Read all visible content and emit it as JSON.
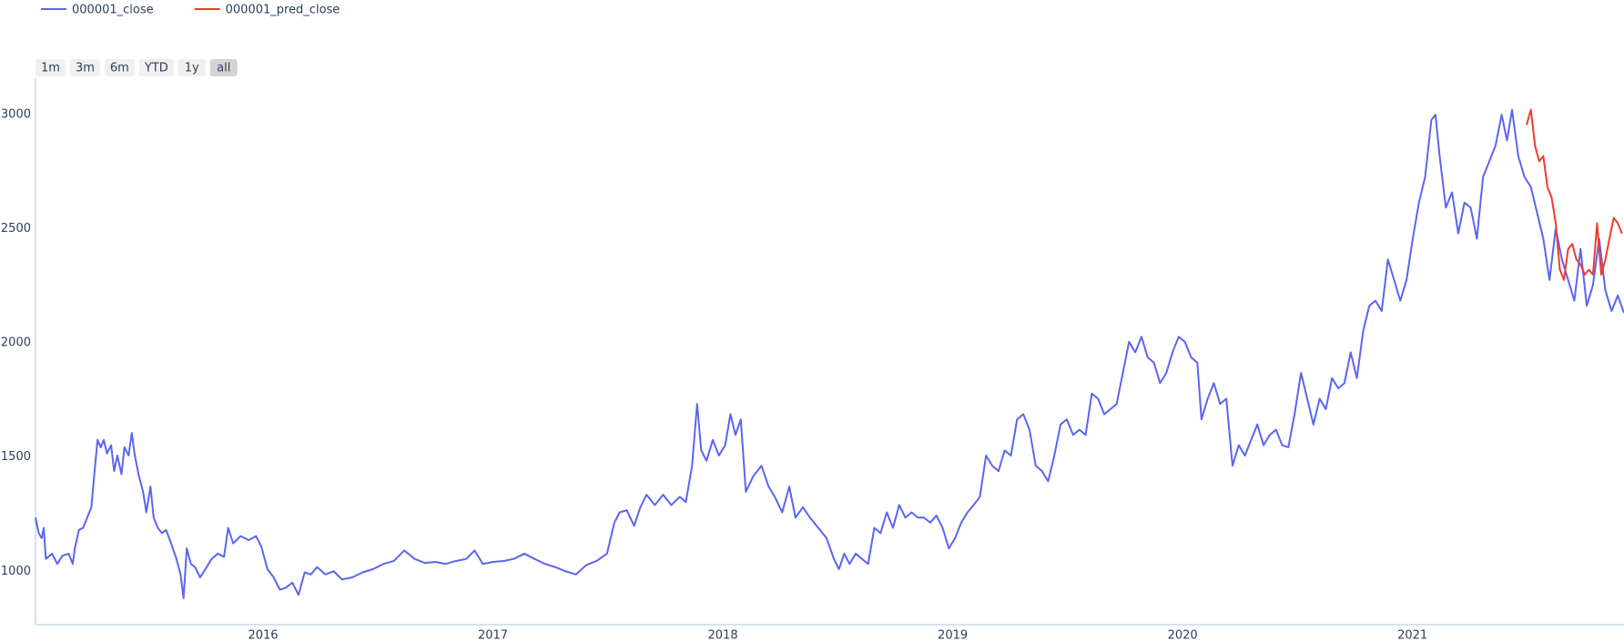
{
  "chart_data": {
    "type": "line",
    "range_buttons": [
      "1m",
      "3m",
      "6m",
      "YTD",
      "1y",
      "all"
    ],
    "active_button": 5,
    "xlim": [
      2015.01,
      2021.92
    ],
    "xticks": [
      2016,
      2017,
      2018,
      2019,
      2020,
      2021
    ],
    "ylim": [
      766,
      3160
    ],
    "yticks": [
      1000,
      1500,
      2000,
      2500,
      3000
    ],
    "grid": false,
    "series": [
      {
        "name": "000001_close",
        "color": "#5a66ee",
        "x": [
          2015.01,
          2015.024,
          2015.037,
          2015.046,
          2015.055,
          2015.082,
          2015.105,
          2015.127,
          2015.154,
          2015.172,
          2015.181,
          2015.199,
          2015.217,
          2015.235,
          2015.253,
          2015.267,
          2015.28,
          2015.294,
          2015.307,
          2015.321,
          2015.339,
          2015.352,
          2015.366,
          2015.384,
          2015.397,
          2015.415,
          2015.429,
          2015.442,
          2015.46,
          2015.478,
          2015.492,
          2015.51,
          2015.524,
          2015.542,
          2015.56,
          2015.578,
          2015.6,
          2015.623,
          2015.641,
          2015.654,
          2015.668,
          2015.686,
          2015.704,
          2015.726,
          2015.749,
          2015.776,
          2015.803,
          2015.83,
          2015.848,
          2015.87,
          2015.902,
          2015.938,
          2015.969,
          2015.992,
          2016.019,
          2016.046,
          2016.073,
          2016.1,
          2016.127,
          2016.154,
          2016.181,
          2016.208,
          2016.235,
          2016.271,
          2016.307,
          2016.343,
          2016.388,
          2016.433,
          2016.478,
          2016.524,
          2016.569,
          2016.614,
          2016.659,
          2016.704,
          2016.749,
          2016.794,
          2016.839,
          2016.884,
          2016.92,
          2016.956,
          2017.001,
          2017.046,
          2017.091,
          2017.136,
          2017.181,
          2017.226,
          2017.271,
          2017.316,
          2017.361,
          2017.406,
          2017.451,
          2017.496,
          2017.528,
          2017.551,
          2017.582,
          2017.614,
          2017.641,
          2017.668,
          2017.704,
          2017.74,
          2017.776,
          2017.812,
          2017.839,
          2017.866,
          2017.888,
          2017.906,
          2017.929,
          2017.956,
          2017.983,
          2018.01,
          2018.033,
          2018.055,
          2018.078,
          2018.1,
          2018.132,
          2018.168,
          2018.199,
          2018.226,
          2018.258,
          2018.289,
          2018.316,
          2018.348,
          2018.379,
          2018.415,
          2018.451,
          2018.483,
          2018.505,
          2018.528,
          2018.551,
          2018.578,
          2018.605,
          2018.632,
          2018.659,
          2018.686,
          2018.713,
          2018.74,
          2018.767,
          2018.794,
          2018.821,
          2018.848,
          2018.875,
          2018.902,
          2018.929,
          2018.956,
          2018.983,
          2019.01,
          2019.037,
          2019.064,
          2019.091,
          2019.118,
          2019.145,
          2019.172,
          2019.199,
          2019.226,
          2019.253,
          2019.28,
          2019.307,
          2019.334,
          2019.361,
          2019.388,
          2019.415,
          2019.442,
          2019.469,
          2019.496,
          2019.524,
          2019.551,
          2019.578,
          2019.605,
          2019.632,
          2019.659,
          2019.686,
          2019.713,
          2019.74,
          2019.767,
          2019.794,
          2019.821,
          2019.848,
          2019.875,
          2019.902,
          2019.929,
          2019.956,
          2019.983,
          2020.01,
          2020.037,
          2020.064,
          2020.082,
          2020.109,
          2020.136,
          2020.163,
          2020.19,
          2020.217,
          2020.244,
          2020.271,
          2020.298,
          2020.325,
          2020.352,
          2020.379,
          2020.406,
          2020.433,
          2020.46,
          2020.487,
          2020.515,
          2020.542,
          2020.569,
          2020.596,
          2020.623,
          2020.65,
          2020.677,
          2020.704,
          2020.731,
          2020.758,
          2020.785,
          2020.812,
          2020.839,
          2020.866,
          2020.893,
          2020.92,
          2020.947,
          2020.974,
          2021.001,
          2021.028,
          2021.055,
          2021.082,
          2021.1,
          2021.118,
          2021.145,
          2021.172,
          2021.199,
          2021.226,
          2021.253,
          2021.28,
          2021.307,
          2021.334,
          2021.361,
          2021.388,
          2021.411,
          2021.433,
          2021.46,
          2021.487,
          2021.515,
          2021.542,
          2021.569,
          2021.596,
          2021.623,
          2021.65,
          2021.677,
          2021.704,
          2021.731,
          2021.758,
          2021.785,
          2021.812,
          2021.839,
          2021.866,
          2021.893,
          2021.92
        ],
        "values": [
          1235,
          1167,
          1145,
          1190,
          1054,
          1077,
          1032,
          1068,
          1077,
          1032,
          1100,
          1181,
          1190,
          1235,
          1280,
          1439,
          1575,
          1543,
          1575,
          1516,
          1552,
          1439,
          1507,
          1425,
          1543,
          1507,
          1606,
          1507,
          1416,
          1348,
          1258,
          1371,
          1235,
          1190,
          1167,
          1181,
          1122,
          1054,
          986,
          882,
          1100,
          1032,
          1018,
          973,
          1009,
          1054,
          1077,
          1063,
          1190,
          1122,
          1154,
          1136,
          1154,
          1109,
          1009,
          973,
          919,
          928,
          950,
          896,
          995,
          986,
          1018,
          986,
          1000,
          964,
          973,
          995,
          1009,
          1032,
          1045,
          1091,
          1054,
          1036,
          1041,
          1032,
          1045,
          1054,
          1091,
          1032,
          1041,
          1045,
          1054,
          1077,
          1054,
          1032,
          1018,
          1000,
          986,
          1027,
          1045,
          1077,
          1213,
          1258,
          1267,
          1199,
          1280,
          1335,
          1290,
          1335,
          1290,
          1326,
          1303,
          1462,
          1733,
          1529,
          1484,
          1575,
          1507,
          1552,
          1688,
          1597,
          1665,
          1348,
          1416,
          1462,
          1371,
          1326,
          1258,
          1371,
          1235,
          1280,
          1235,
          1190,
          1145,
          1054,
          1009,
          1077,
          1032,
          1077,
          1054,
          1032,
          1190,
          1167,
          1258,
          1190,
          1290,
          1235,
          1258,
          1235,
          1235,
          1213,
          1244,
          1190,
          1100,
          1145,
          1213,
          1258,
          1290,
          1326,
          1507,
          1462,
          1439,
          1529,
          1507,
          1665,
          1688,
          1620,
          1462,
          1439,
          1394,
          1507,
          1643,
          1665,
          1597,
          1620,
          1597,
          1778,
          1756,
          1688,
          1710,
          1733,
          1869,
          2005,
          1959,
          2027,
          1937,
          1914,
          1824,
          1869,
          1959,
          2027,
          2005,
          1937,
          1914,
          1665,
          1756,
          1824,
          1733,
          1756,
          1462,
          1552,
          1507,
          1575,
          1643,
          1552,
          1597,
          1620,
          1552,
          1543,
          1688,
          1869,
          1756,
          1643,
          1756,
          1710,
          1846,
          1801,
          1824,
          1959,
          1846,
          2050,
          2163,
          2185,
          2140,
          2366,
          2276,
          2185,
          2276,
          2457,
          2615,
          2728,
          2977,
          3000,
          2819,
          2593,
          2660,
          2480,
          2615,
          2593,
          2457,
          2728,
          2796,
          2864,
          3000,
          2887,
          3022,
          2819,
          2728,
          2683,
          2570,
          2457,
          2276,
          2502,
          2366,
          2276,
          2185,
          2412,
          2163,
          2254,
          2457,
          2230,
          2140,
          2208,
          2132
        ]
      },
      {
        "name": "000001_pred_close",
        "color": "#ef3b2c",
        "x": [
          2021.496,
          2021.515,
          2021.533,
          2021.551,
          2021.569,
          2021.587,
          2021.605,
          2021.623,
          2021.641,
          2021.659,
          2021.677,
          2021.695,
          2021.713,
          2021.731,
          2021.749,
          2021.767,
          2021.785,
          2021.803,
          2021.821,
          2021.839,
          2021.857,
          2021.875,
          2021.893,
          2021.911
        ],
        "values": [
          2955,
          3022,
          2864,
          2796,
          2819,
          2683,
          2638,
          2525,
          2321,
          2276,
          2412,
          2434,
          2366,
          2344,
          2299,
          2321,
          2299,
          2525,
          2299,
          2366,
          2457,
          2548,
          2525,
          2480
        ]
      }
    ]
  }
}
